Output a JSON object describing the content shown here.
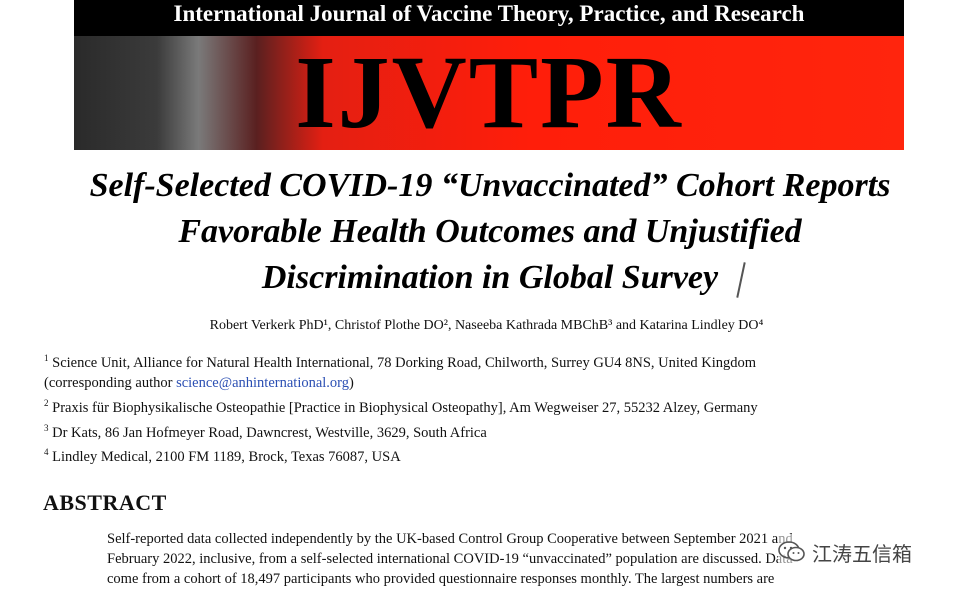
{
  "journal": {
    "name": "International Journal of Vaccine Theory, Practice, and Research",
    "logo": "IJVTPR",
    "colors": {
      "banner_red": "#ff1e0a",
      "banner_black": "#000000"
    }
  },
  "article": {
    "title_lines": [
      "Self-Selected COVID-19 “Unvaccinated” Cohort Reports",
      "Favorable Health Outcomes and Unjustified",
      "Discrimination in Global Survey"
    ],
    "authors": "Robert Verkerk PhD¹, Christof Plothe DO², Naseeba Kathrada MBChB³ and Katarina Lindley DO⁴",
    "affiliations": [
      {
        "num": "1",
        "text": "Science Unit, Alliance for Natural Health International, 78 Dorking Road, Chilworth, Surrey GU4 8NS, United Kingdom"
      },
      {
        "num": "",
        "text_before": "(corresponding author ",
        "email": "science@anhinternational.org",
        "text_after": ")"
      },
      {
        "num": "2",
        "text": "Praxis für Biophysikalische Osteopathie [Practice in Biophysical Osteopathy], Am Wegweiser 27, 55232 Alzey, Germany"
      },
      {
        "num": "3",
        "text": "Dr Kats, 86 Jan Hofmeyer Road, Dawncrest, Westville, 3629, South Africa"
      },
      {
        "num": "4",
        "text": "Lindley Medical, 2100 FM 1189, Brock, Texas 76087, USA"
      }
    ],
    "abstract_heading": "ABSTRACT",
    "abstract_lines": [
      "Self-reported data collected independently by the UK-based Control Group Cooperative between September 2021 and",
      "February 2022, inclusive, from a self-selected international COVID-19 “unvaccinated” population are discussed. Data",
      "come from a cohort of 18,497 participants who provided questionnaire responses monthly. The largest numbers are"
    ]
  },
  "watermark": {
    "text": "江涛五信箱",
    "icon": "wechat-icon"
  }
}
